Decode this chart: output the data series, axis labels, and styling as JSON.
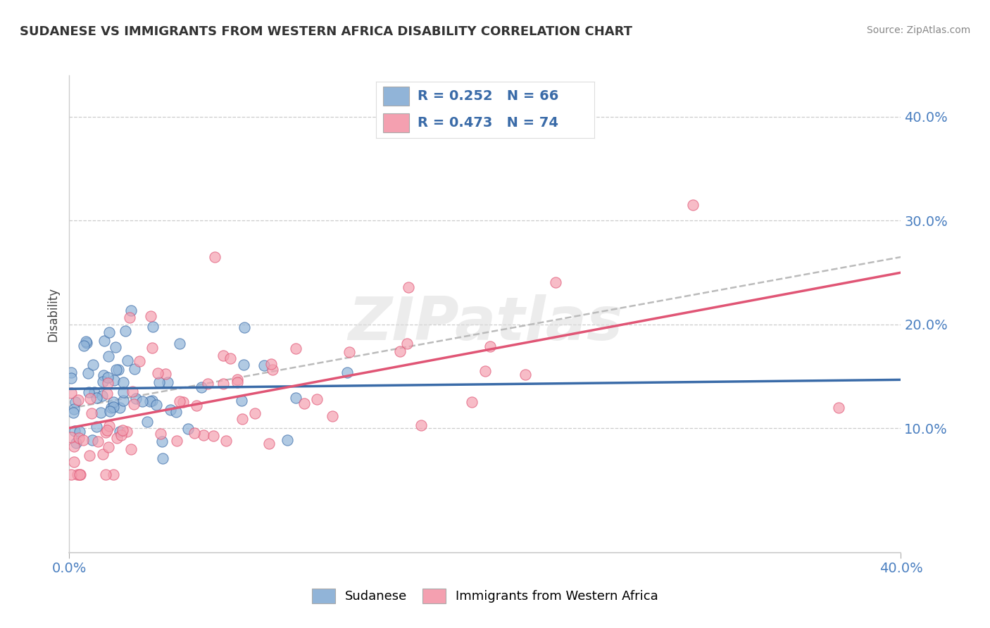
{
  "title": "SUDANESE VS IMMIGRANTS FROM WESTERN AFRICA DISABILITY CORRELATION CHART",
  "source": "Source: ZipAtlas.com",
  "ylabel": "Disability",
  "yticks": [
    0.1,
    0.2,
    0.3,
    0.4
  ],
  "ytick_labels": [
    "10.0%",
    "20.0%",
    "30.0%",
    "40.0%"
  ],
  "xlim": [
    0.0,
    0.4
  ],
  "ylim": [
    -0.02,
    0.44
  ],
  "legend_r1": "R = 0.252",
  "legend_n1": "N = 66",
  "legend_r2": "R = 0.473",
  "legend_n2": "N = 74",
  "color_blue": "#91B4D8",
  "color_pink": "#F4A0B0",
  "color_blue_line": "#3A6BA8",
  "color_pink_line": "#E05575",
  "color_legend_text": "#3A6BA8",
  "color_dashed_line": "#BBBBBB",
  "background_color": "#FFFFFF",
  "watermark": "ZIPatlas",
  "title_color": "#333333",
  "source_color": "#888888",
  "tick_color": "#4A7FC0"
}
